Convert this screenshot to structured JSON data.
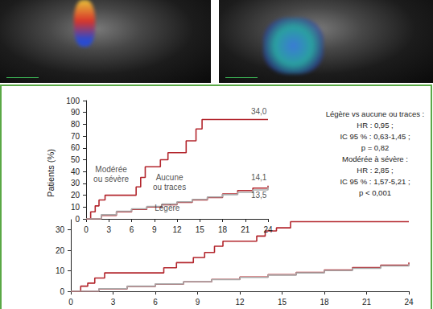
{
  "chart_data": [
    {
      "type": "line",
      "ylabel": "Patients (%)",
      "xlim": [
        0,
        24
      ],
      "xticks": [
        0,
        3,
        6,
        9,
        12,
        15,
        18,
        21,
        24
      ],
      "ylim": [
        0,
        35
      ],
      "yticks": [
        0,
        10,
        20,
        30
      ],
      "grid": false,
      "series": [
        {
          "color": "#b3262d",
          "line_style": "step",
          "x": [
            0,
            0.7,
            1.2,
            1.7,
            2.4,
            6.2,
            6.6,
            7.5,
            8.7,
            9.5,
            10.2,
            10.8,
            12.6,
            13.2,
            13.8,
            14.6,
            15.6,
            24
          ],
          "values": [
            0,
            2.5,
            4,
            6.5,
            9,
            9,
            11.5,
            14,
            16.5,
            19,
            22,
            24.5,
            24.5,
            27,
            29.5,
            31,
            34,
            34
          ]
        },
        {
          "color": "#b3262d",
          "line_style": "step",
          "x": [
            0,
            2,
            4,
            6,
            8,
            10,
            12,
            14,
            16,
            18,
            20,
            22,
            24
          ],
          "values": [
            0,
            1.2,
            2.4,
            3.5,
            4.6,
            5.8,
            7,
            8.1,
            9.2,
            10.4,
            11.6,
            12.8,
            14.1
          ]
        },
        {
          "color": "#aaaaaa",
          "line_style": "step",
          "x": [
            0,
            2,
            4,
            6,
            8,
            10,
            12,
            14,
            16,
            18,
            20,
            22,
            24
          ],
          "values": [
            0,
            1.3,
            2.5,
            3.6,
            4.7,
            5.7,
            6.8,
            7.9,
            9,
            10.1,
            11.2,
            12.4,
            13.5
          ]
        }
      ]
    },
    {
      "type": "line",
      "xlim": [
        0,
        24
      ],
      "xticks": [
        0,
        3,
        6,
        9,
        12,
        15,
        18,
        21,
        24
      ],
      "ylim": [
        0,
        100
      ],
      "yticks": [
        0,
        10,
        20,
        30,
        40,
        50,
        60,
        70,
        80,
        90,
        100
      ],
      "grid": false,
      "series": [
        {
          "color": "#b3262d",
          "line_style": "step",
          "x": [
            0,
            0.6,
            1.2,
            1.7,
            2.5,
            6.2,
            6.6,
            7.2,
            7.8,
            9.8,
            10.8,
            12.7,
            13.2,
            14.5,
            15.3,
            24
          ],
          "values": [
            0,
            6,
            11,
            16,
            20,
            20,
            27,
            35,
            44,
            50,
            56,
            56,
            66,
            76,
            84,
            84
          ]
        },
        {
          "color": "#b3262d",
          "line_style": "step",
          "x": [
            0,
            2,
            4,
            6,
            8,
            10,
            12,
            14,
            16,
            18,
            20,
            22,
            24
          ],
          "values": [
            0,
            3,
            6,
            8,
            10,
            12,
            14,
            16,
            18,
            21,
            24,
            26,
            28
          ]
        },
        {
          "color": "#aaaaaa",
          "line_style": "step",
          "x": [
            0,
            2,
            4,
            6,
            8,
            10,
            12,
            14,
            16,
            18,
            20,
            22,
            24
          ],
          "values": [
            0,
            3.5,
            6.5,
            8.5,
            10.5,
            12.5,
            14.5,
            16.5,
            18.5,
            20.5,
            22.5,
            24.5,
            27
          ]
        }
      ],
      "annotations": [
        {
          "text": "34,0",
          "x": 22.8,
          "y": 91
        },
        {
          "text": "14,1",
          "x": 22.8,
          "y": 35
        },
        {
          "text": "13,5",
          "x": 22.8,
          "y": 20
        },
        {
          "text": "Modérée\nou sévère",
          "x": 3.3,
          "y": 38
        },
        {
          "text": "Aucune\nou traces",
          "x": 11,
          "y": 31
        },
        {
          "text": "Légère",
          "x": 10.7,
          "y": 9
        }
      ],
      "text_box": [
        "Légère vs aucune ou traces :",
        "HR : 0,95 ;",
        "IC 95 % : 0,63-1,45 ;",
        "p = 0,82",
        "Modérée à sévère :",
        "HR : 2,85 ;",
        "IC 95 % : 1,57-5,21 ;",
        "p < 0,001"
      ]
    }
  ]
}
